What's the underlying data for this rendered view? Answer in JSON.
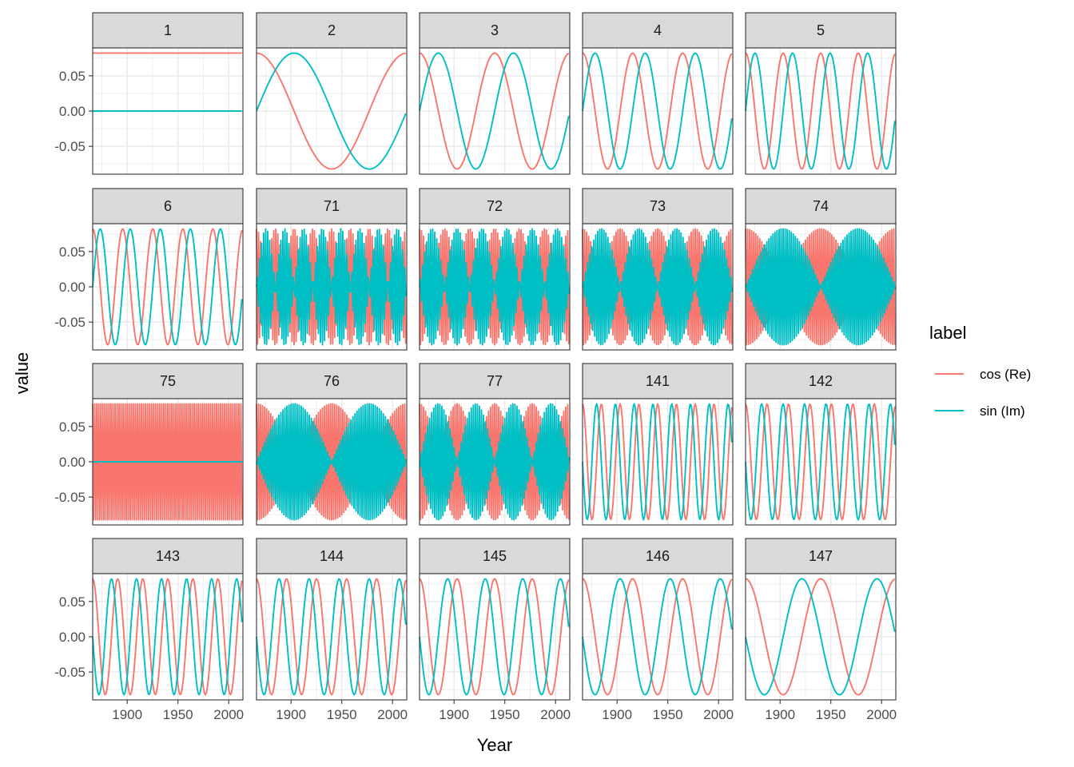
{
  "chart_data": {
    "type": "line",
    "subtype": "faceted small multiples (5 columns x 4 rows)",
    "xlabel": "Year",
    "ylabel": "value",
    "x_range": [
      1866,
      2014
    ],
    "x_ticks": [
      1900,
      1950,
      2000
    ],
    "x_tick_labels": [
      "1900",
      "1950",
      "2000"
    ],
    "y_range": [
      -0.0895,
      0.0895
    ],
    "y_ticks": [
      -0.05,
      0.0,
      0.05
    ],
    "y_tick_labels": [
      "-0.05",
      "0.00",
      "0.05"
    ],
    "grid": true,
    "amplitude": 0.0822,
    "legend": {
      "title": "label",
      "placement": "right",
      "entries": [
        {
          "name": "cos (Re)",
          "color": "#F8766D"
        },
        {
          "name": "sin (Im)",
          "color": "#00BFC4"
        }
      ]
    },
    "n_points_per_series": 148,
    "panels": [
      {
        "label": "1",
        "frequency_index": 0
      },
      {
        "label": "2",
        "frequency_index": 1
      },
      {
        "label": "3",
        "frequency_index": 2
      },
      {
        "label": "4",
        "frequency_index": 3
      },
      {
        "label": "5",
        "frequency_index": 4
      },
      {
        "label": "6",
        "frequency_index": 5
      },
      {
        "label": "71",
        "frequency_index": 70
      },
      {
        "label": "72",
        "frequency_index": 71
      },
      {
        "label": "73",
        "frequency_index": 72
      },
      {
        "label": "74",
        "frequency_index": 73
      },
      {
        "label": "75",
        "frequency_index": 74
      },
      {
        "label": "76",
        "frequency_index": 75
      },
      {
        "label": "77",
        "frequency_index": 76
      },
      {
        "label": "141",
        "frequency_index": 140
      },
      {
        "label": "142",
        "frequency_index": 141
      },
      {
        "label": "143",
        "frequency_index": 142
      },
      {
        "label": "144",
        "frequency_index": 143
      },
      {
        "label": "145",
        "frequency_index": 144
      },
      {
        "label": "146",
        "frequency_index": 145
      },
      {
        "label": "147",
        "frequency_index": 146
      }
    ],
    "series": [
      {
        "name": "cos (Re)",
        "formula": "0.0822*cos(2*pi*frequency_index*t/148)"
      },
      {
        "name": "sin (Im)",
        "formula": "0.0822*sin(2*pi*frequency_index*t/148)"
      }
    ]
  }
}
